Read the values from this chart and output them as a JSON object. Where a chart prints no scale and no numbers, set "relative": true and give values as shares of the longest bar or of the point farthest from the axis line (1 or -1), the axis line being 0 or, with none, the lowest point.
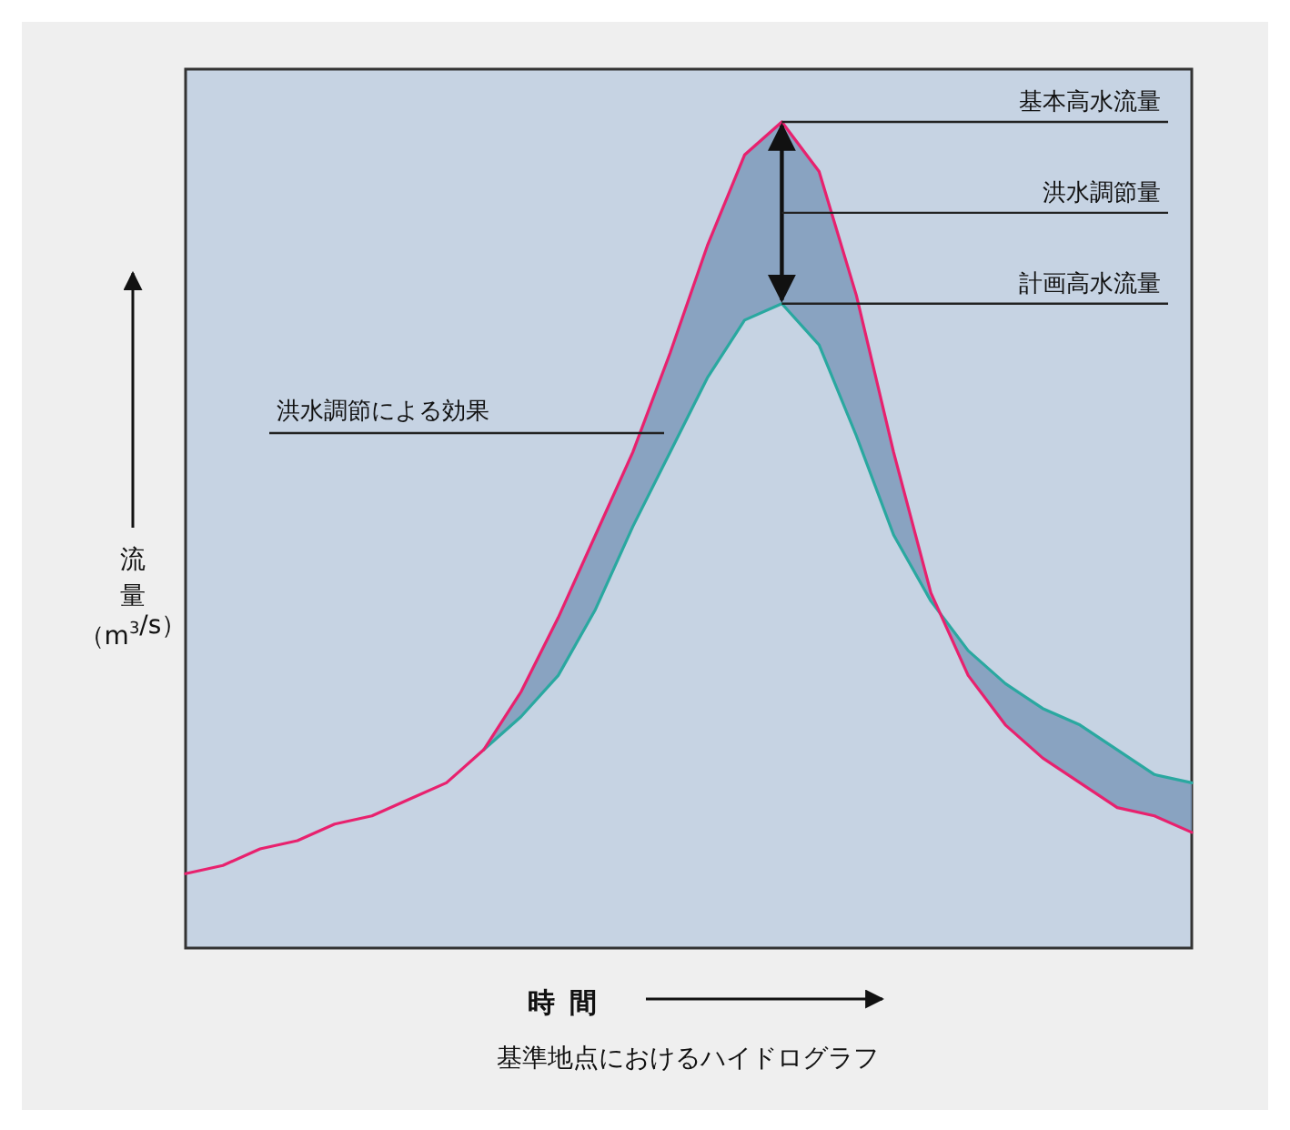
{
  "chart_data": {
    "type": "line",
    "relative": true,
    "title": "基準地点におけるハイドログラフ",
    "xlabel": "時間",
    "ylabel": "流量（m$^{3}$/s）",
    "categories": [
      null,
      null,
      null,
      null,
      null,
      null,
      null,
      null,
      null,
      null,
      null,
      null,
      null,
      null,
      null,
      null,
      null,
      null,
      null,
      null,
      null,
      null,
      null,
      null,
      null,
      null,
      null,
      null
    ],
    "series": [
      {
        "color": "#e8216e",
        "values": [
          0.09,
          0.1,
          0.12,
          0.13,
          0.15,
          0.16,
          0.18,
          0.2,
          0.24,
          0.31,
          0.4,
          0.5,
          0.6,
          0.72,
          0.85,
          0.96,
          1,
          0.94,
          0.79,
          0.6,
          0.43,
          0.33,
          0.27,
          0.23,
          0.2,
          0.17,
          0.16,
          0.14
        ],
        "lower": [
          null,
          null,
          null,
          null,
          null,
          null,
          null,
          null,
          0.24,
          0.28,
          0.33,
          0.41,
          0.51,
          0.6,
          0.69,
          0.76,
          0.78,
          0.73,
          0.62,
          0.5,
          0.42,
          0.36,
          0.32,
          0.29,
          0.27,
          0.24,
          0.21,
          0.2
        ],
        "upper": [
          null,
          null,
          null,
          null,
          null,
          null,
          null,
          null,
          0.24,
          0.31,
          0.4,
          0.5,
          0.6,
          0.72,
          0.85,
          0.96,
          1,
          0.94,
          0.79,
          0.6,
          0.43,
          0.33,
          0.27,
          0.23,
          0.2,
          0.17,
          0.16,
          0.14
        ]
      },
      {
        "color": "#2aa8a0",
        "values": [
          null,
          null,
          null,
          null,
          null,
          null,
          null,
          null,
          0.24,
          0.28,
          0.33,
          0.41,
          0.51,
          0.6,
          0.69,
          0.76,
          0.78,
          0.73,
          0.62,
          0.5,
          0.42,
          0.36,
          0.32,
          0.29,
          0.27,
          0.24,
          0.21,
          0.2
        ]
      }
    ],
    "annotations": [
      "基本高水流量",
      "洪水調節量",
      "計画高水流量",
      "洪水調節による効果"
    ]
  }
}
